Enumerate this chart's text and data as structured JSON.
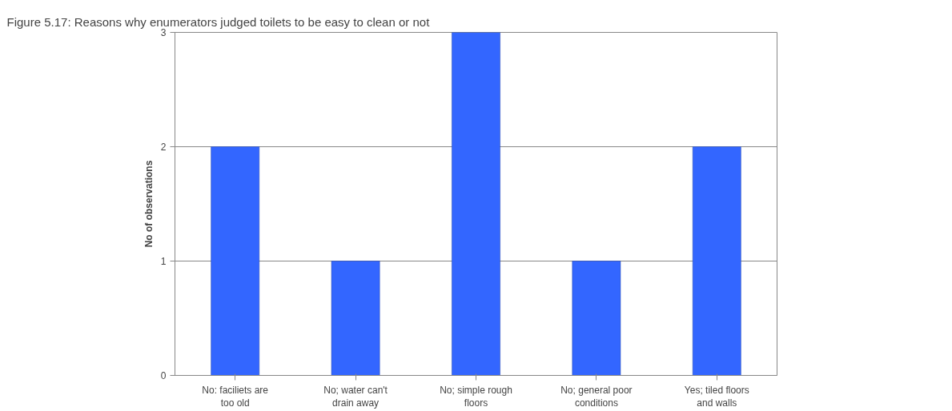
{
  "chart_data": {
    "type": "bar",
    "title": "Figure 5.17: Reasons why enumerators judged toilets to be easy to clean or not",
    "ylabel": "No of observations",
    "categories": [
      "No: faciliets are too old",
      "No; water can't drain away",
      "No; simple rough floors",
      "No; general poor conditions",
      "Yes; tiled floors and walls"
    ],
    "values": [
      2,
      1,
      3,
      1,
      2
    ],
    "color": "#3366ff",
    "ylim": [
      0,
      3
    ],
    "yticks": [
      0,
      1,
      2,
      3
    ],
    "grid": "y"
  }
}
